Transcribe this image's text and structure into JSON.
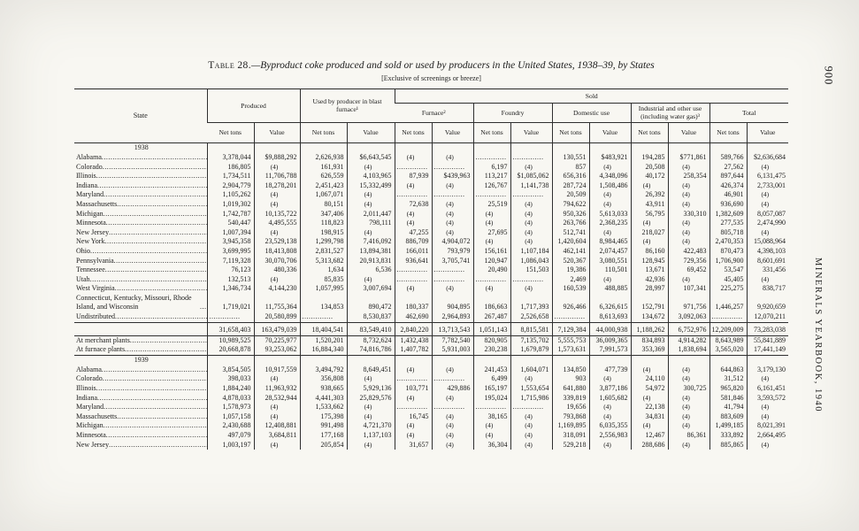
{
  "page": {
    "page_number": "900",
    "side_title": "MINERALS YEARBOOK, 1940"
  },
  "heading": {
    "table_label": "Table 28.",
    "title": "—Byproduct coke produced and sold or used by producers in the United States, 1938–39, by States",
    "subtitle": "[Exclusive of screenings or breeze]"
  },
  "table": {
    "headers": {
      "state": "State",
      "produced": "Produced",
      "used_blast": "Used by producer in blast furnace¹",
      "sold": "Sold",
      "furnace": "Furnace²",
      "foundry": "Foundry",
      "domestic": "Domestic use",
      "industrial": "Industrial and other use (including water gas)³",
      "total": "Total",
      "net_tons": "Net tons",
      "value": "Value"
    },
    "rows": [
      {
        "type": "year",
        "label": "1938",
        "cells": []
      },
      {
        "type": "data",
        "label": "Alabama",
        "cells": [
          "3,378,044",
          "$9,888,292",
          "2,626,938",
          "$6,643,545",
          "(4)",
          "(4)",
          "",
          "",
          "130,551",
          "$483,921",
          "194,285",
          "$771,861",
          "589,766",
          "$2,636,684"
        ]
      },
      {
        "type": "data",
        "label": "Colorado",
        "cells": [
          "186,805",
          "(4)",
          "161,931",
          "(4)",
          "",
          "",
          "6,197",
          "(4)",
          "857",
          "(4)",
          "20,508",
          "(4)",
          "27,562",
          "(4)"
        ]
      },
      {
        "type": "data",
        "label": "Illinois",
        "cells": [
          "1,734,511",
          "11,706,788",
          "626,559",
          "4,103,965",
          "87,939",
          "$439,963",
          "113,217",
          "$1,085,062",
          "656,316",
          "4,348,096",
          "40,172",
          "258,354",
          "897,644",
          "6,131,475"
        ]
      },
      {
        "type": "data",
        "label": "Indiana",
        "cells": [
          "2,904,779",
          "18,278,201",
          "2,451,423",
          "15,332,499",
          "(4)",
          "(4)",
          "126,767",
          "1,141,738",
          "287,724",
          "1,508,486",
          "(4)",
          "(4)",
          "426,374",
          "2,733,001"
        ]
      },
      {
        "type": "data",
        "label": "Maryland",
        "cells": [
          "1,105,262",
          "(4)",
          "1,067,071",
          "(4)",
          "",
          "",
          "",
          "",
          "20,509",
          "(4)",
          "26,392",
          "(4)",
          "46,901",
          "(4)"
        ]
      },
      {
        "type": "data",
        "label": "Massachusetts",
        "cells": [
          "1,019,302",
          "(4)",
          "80,151",
          "(4)",
          "72,638",
          "(4)",
          "25,519",
          "(4)",
          "794,622",
          "(4)",
          "43,911",
          "(4)",
          "936,690",
          "(4)"
        ]
      },
      {
        "type": "data",
        "label": "Michigan",
        "cells": [
          "1,742,787",
          "10,135,722",
          "347,406",
          "2,011,447",
          "(4)",
          "(4)",
          "(4)",
          "(4)",
          "950,326",
          "5,613,033",
          "56,795",
          "330,310",
          "1,382,609",
          "8,057,087"
        ]
      },
      {
        "type": "data",
        "label": "Minnesota",
        "cells": [
          "540,447",
          "4,495,555",
          "118,823",
          "798,111",
          "(4)",
          "(4)",
          "(4)",
          "(4)",
          "263,766",
          "2,368,235",
          "(4)",
          "(4)",
          "277,535",
          "2,474,990"
        ]
      },
      {
        "type": "data",
        "label": "New Jersey",
        "cells": [
          "1,007,394",
          "(4)",
          "198,915",
          "(4)",
          "47,255",
          "(4)",
          "27,695",
          "(4)",
          "512,741",
          "(4)",
          "218,027",
          "(4)",
          "805,718",
          "(4)"
        ]
      },
      {
        "type": "data",
        "label": "New York",
        "cells": [
          "3,945,358",
          "23,529,138",
          "1,299,798",
          "7,416,092",
          "886,709",
          "4,904,072",
          "(4)",
          "(4)",
          "1,420,604",
          "8,984,465",
          "(4)",
          "(4)",
          "2,470,353",
          "15,088,964"
        ]
      },
      {
        "type": "data",
        "label": "Ohio",
        "cells": [
          "3,699,995",
          "18,413,808",
          "2,831,527",
          "13,894,381",
          "166,011",
          "793,979",
          "156,161",
          "1,107,184",
          "462,141",
          "2,074,457",
          "86,160",
          "422,483",
          "870,473",
          "4,398,103"
        ]
      },
      {
        "type": "data",
        "label": "Pennsylvania",
        "cells": [
          "7,119,328",
          "30,070,706",
          "5,313,682",
          "20,913,831",
          "936,641",
          "3,705,741",
          "120,947",
          "1,086,043",
          "520,367",
          "3,080,551",
          "128,945",
          "729,356",
          "1,706,900",
          "8,601,691"
        ]
      },
      {
        "type": "data",
        "label": "Tennessee",
        "cells": [
          "76,123",
          "480,336",
          "1,634",
          "6,536",
          "",
          "",
          "20,490",
          "151,503",
          "19,386",
          "110,501",
          "13,671",
          "69,452",
          "53,547",
          "331,456"
        ]
      },
      {
        "type": "data",
        "label": "Utah",
        "cells": [
          "132,513",
          "(4)",
          "85,835",
          "(4)",
          "",
          "",
          "",
          "",
          "2,469",
          "(4)",
          "42,936",
          "(4)",
          "45,405",
          "(4)"
        ]
      },
      {
        "type": "data",
        "label": "West Virginia",
        "cells": [
          "1,346,734",
          "4,144,230",
          "1,057,995",
          "3,007,694",
          "(4)",
          "(4)",
          "(4)",
          "(4)",
          "160,539",
          "488,885",
          "28,997",
          "107,341",
          "225,275",
          "838,717"
        ]
      },
      {
        "type": "data",
        "label": "Connecticut, Kentucky, Missouri, Rhode Island, and Wisconsin",
        "cells": [
          "1,719,021",
          "11,755,364",
          "134,853",
          "890,472",
          "180,337",
          "904,895",
          "186,663",
          "1,717,393",
          "926,466",
          "6,326,615",
          "152,791",
          "971,756",
          "1,446,257",
          "9,920,659"
        ]
      },
      {
        "type": "data",
        "label": "Undistributed",
        "cells": [
          "",
          "20,580,899",
          "",
          "8,530,837",
          "462,690",
          "2,964,893",
          "267,487",
          "2,526,658",
          "",
          "8,613,693",
          "134,672",
          "3,092,063",
          "",
          "12,070,211"
        ]
      },
      {
        "type": "total",
        "label": "",
        "rule_top": true,
        "rule_bottom": true,
        "cells": [
          "31,658,403",
          "163,479,039",
          "18,404,541",
          "83,549,410",
          "2,840,220",
          "13,713,543",
          "1,051,143",
          "8,815,581",
          "7,129,384",
          "44,000,938",
          "1,188,262",
          "6,752,976",
          "12,209,009",
          "73,283,038"
        ]
      },
      {
        "type": "plant",
        "label": "At merchant plants",
        "cells": [
          "10,989,525",
          "70,225,977",
          "1,520,201",
          "8,732,624",
          "1,432,438",
          "7,782,540",
          "820,905",
          "7,135,702",
          "5,555,753",
          "36,009,365",
          "834,893",
          "4,914,282",
          "8,643,989",
          "55,841,889"
        ]
      },
      {
        "type": "plant",
        "label": "At furnace plants",
        "rule_bottom": true,
        "cells": [
          "20,668,878",
          "93,253,062",
          "16,884,340",
          "74,816,786",
          "1,407,782",
          "5,931,003",
          "230,238",
          "1,679,879",
          "1,573,631",
          "7,991,573",
          "353,369",
          "1,838,694",
          "3,565,020",
          "17,441,149"
        ]
      },
      {
        "type": "year",
        "label": "1939",
        "cells": []
      },
      {
        "type": "data",
        "label": "Alabama",
        "cells": [
          "3,854,505",
          "10,917,559",
          "3,494,792",
          "8,649,451",
          "(4)",
          "(4)",
          "241,453",
          "1,604,071",
          "134,850",
          "477,739",
          "(4)",
          "(4)",
          "644,863",
          "3,179,130"
        ]
      },
      {
        "type": "data",
        "label": "Colorado",
        "cells": [
          "398,033",
          "(4)",
          "356,808",
          "(4)",
          "",
          "",
          "6,499",
          "(4)",
          "903",
          "(4)",
          "24,110",
          "(4)",
          "31,512",
          "(4)"
        ]
      },
      {
        "type": "data",
        "label": "Illinois",
        "cells": [
          "1,884,240",
          "11,963,932",
          "938,665",
          "5,929,136",
          "103,771",
          "429,886",
          "165,197",
          "1,553,654",
          "641,880",
          "3,877,186",
          "54,972",
          "300,725",
          "965,820",
          "6,161,451"
        ]
      },
      {
        "type": "data",
        "label": "Indiana",
        "cells": [
          "4,878,033",
          "28,532,944",
          "4,441,303",
          "25,829,576",
          "(4)",
          "(4)",
          "195,024",
          "1,715,986",
          "339,819",
          "1,605,682",
          "(4)",
          "(4)",
          "581,846",
          "3,593,572"
        ]
      },
      {
        "type": "data",
        "label": "Maryland",
        "cells": [
          "1,578,973",
          "(4)",
          "1,533,662",
          "(4)",
          "",
          "",
          "",
          "",
          "19,656",
          "(4)",
          "22,138",
          "(4)",
          "41,794",
          "(4)"
        ]
      },
      {
        "type": "data",
        "label": "Massachusetts",
        "cells": [
          "1,057,158",
          "(4)",
          "175,398",
          "(4)",
          "16,745",
          "(4)",
          "38,165",
          "(4)",
          "793,868",
          "(4)",
          "34,831",
          "(4)",
          "883,609",
          "(4)"
        ]
      },
      {
        "type": "data",
        "label": "Michigan",
        "cells": [
          "2,430,688",
          "12,408,881",
          "991,498",
          "4,721,370",
          "(4)",
          "(4)",
          "(4)",
          "(4)",
          "1,169,895",
          "6,035,355",
          "(4)",
          "(4)",
          "1,499,185",
          "8,021,391"
        ]
      },
      {
        "type": "data",
        "label": "Minnesota",
        "cells": [
          "497,079",
          "3,684,811",
          "177,168",
          "1,137,103",
          "(4)",
          "(4)",
          "(4)",
          "(4)",
          "318,091",
          "2,556,983",
          "12,467",
          "86,361",
          "333,892",
          "2,664,495"
        ]
      },
      {
        "type": "data",
        "label": "New Jersey",
        "cells": [
          "1,003,197",
          "(4)",
          "205,854",
          "(4)",
          "31,657",
          "(4)",
          "36,304",
          "(4)",
          "529,218",
          "(4)",
          "288,686",
          "(4)",
          "885,865",
          "(4)"
        ]
      }
    ]
  }
}
